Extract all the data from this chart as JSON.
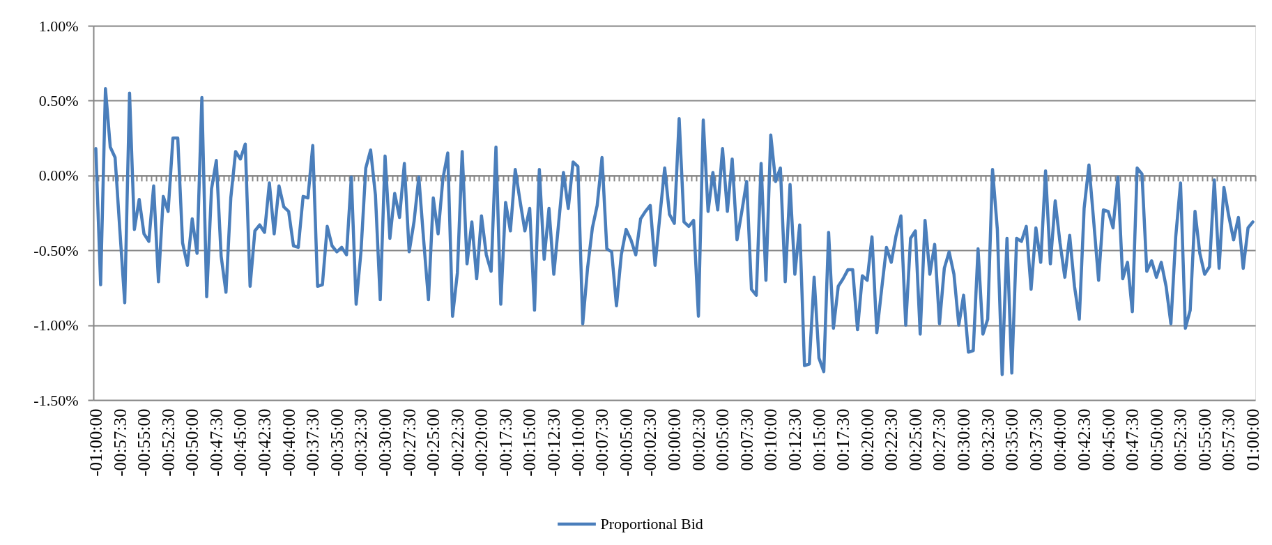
{
  "chart_data": {
    "type": "line",
    "categories": [
      "-01:00:00",
      null,
      null,
      null,
      null,
      "-00:57:30",
      null,
      null,
      null,
      null,
      "-00:55:00",
      null,
      null,
      null,
      null,
      "-00:52:30",
      null,
      null,
      null,
      null,
      "-00:50:00",
      null,
      null,
      null,
      null,
      "-00:47:30",
      null,
      null,
      null,
      null,
      "-00:45:00",
      null,
      null,
      null,
      null,
      "-00:42:30",
      null,
      null,
      null,
      null,
      "-00:40:00",
      null,
      null,
      null,
      null,
      "-00:37:30",
      null,
      null,
      null,
      null,
      "-00:35:00",
      null,
      null,
      null,
      null,
      "-00:32:30",
      null,
      null,
      null,
      null,
      "-00:30:00",
      null,
      null,
      null,
      null,
      "-00:27:30",
      null,
      null,
      null,
      null,
      "-00:25:00",
      null,
      null,
      null,
      null,
      "-00:22:30",
      null,
      null,
      null,
      null,
      "-00:20:00",
      null,
      null,
      null,
      null,
      "-00:17:30",
      null,
      null,
      null,
      null,
      "-00:15:00",
      null,
      null,
      null,
      null,
      "-00:12:30",
      null,
      null,
      null,
      null,
      "-00:10:00",
      null,
      null,
      null,
      null,
      "-00:07:30",
      null,
      null,
      null,
      null,
      "-00:05:00",
      null,
      null,
      null,
      null,
      "-00:02:30",
      null,
      null,
      null,
      null,
      "00:00:00",
      null,
      null,
      null,
      null,
      "00:02:30",
      null,
      null,
      null,
      null,
      "00:05:00",
      null,
      null,
      null,
      null,
      "00:07:30",
      null,
      null,
      null,
      null,
      "00:10:00",
      null,
      null,
      null,
      null,
      "00:12:30",
      null,
      null,
      null,
      null,
      "00:15:00",
      null,
      null,
      null,
      null,
      "00:17:30",
      null,
      null,
      null,
      null,
      "00:20:00",
      null,
      null,
      null,
      null,
      "00:22:30",
      null,
      null,
      null,
      null,
      "00:25:00",
      null,
      null,
      null,
      null,
      "00:27:30",
      null,
      null,
      null,
      null,
      "00:30:00",
      null,
      null,
      null,
      null,
      "00:32:30",
      null,
      null,
      null,
      null,
      "00:35:00",
      null,
      null,
      null,
      null,
      "00:37:30",
      null,
      null,
      null,
      null,
      "00:40:00",
      null,
      null,
      null,
      null,
      "00:42:30",
      null,
      null,
      null,
      null,
      "00:45:00",
      null,
      null,
      null,
      null,
      "00:47:30",
      null,
      null,
      null,
      null,
      "00:50:00",
      null,
      null,
      null,
      null,
      "00:52:30",
      null,
      null,
      null,
      null,
      "00:55:00",
      null,
      null,
      null,
      null,
      "00:57:30",
      null,
      null,
      null,
      null,
      "01:00:00"
    ],
    "series": [
      {
        "name": "Proportional Bid",
        "color": "#4a7ebb",
        "values": [
          0.18,
          -0.73,
          0.58,
          0.19,
          0.12,
          -0.37,
          -0.85,
          0.55,
          -0.36,
          -0.16,
          -0.39,
          -0.44,
          -0.07,
          -0.71,
          -0.14,
          -0.24,
          0.25,
          0.25,
          -0.45,
          -0.6,
          -0.29,
          -0.52,
          0.52,
          -0.81,
          -0.09,
          0.1,
          -0.54,
          -0.78,
          -0.15,
          0.16,
          0.11,
          0.21,
          -0.74,
          -0.37,
          -0.33,
          -0.38,
          -0.05,
          -0.39,
          -0.07,
          -0.21,
          -0.24,
          -0.47,
          -0.48,
          -0.14,
          -0.15,
          0.2,
          -0.74,
          -0.73,
          -0.34,
          -0.47,
          -0.51,
          -0.48,
          -0.53,
          -0.01,
          -0.86,
          -0.51,
          0.05,
          0.17,
          -0.13,
          -0.83,
          0.13,
          -0.42,
          -0.12,
          -0.28,
          0.08,
          -0.51,
          -0.31,
          -0.01,
          -0.43,
          -0.83,
          -0.15,
          -0.39,
          -0.02,
          0.15,
          -0.94,
          -0.65,
          0.16,
          -0.59,
          -0.31,
          -0.69,
          -0.27,
          -0.53,
          -0.64,
          0.19,
          -0.86,
          -0.18,
          -0.37,
          0.04,
          -0.17,
          -0.37,
          -0.22,
          -0.9,
          0.04,
          -0.56,
          -0.22,
          -0.66,
          -0.32,
          0.02,
          -0.22,
          0.09,
          0.06,
          -0.99,
          -0.62,
          -0.35,
          -0.2,
          0.12,
          -0.49,
          -0.51,
          -0.87,
          -0.53,
          -0.36,
          -0.43,
          -0.53,
          -0.29,
          -0.24,
          -0.2,
          -0.6,
          -0.27,
          0.05,
          -0.26,
          -0.32,
          0.38,
          -0.31,
          -0.34,
          -0.3,
          -0.94,
          0.37,
          -0.24,
          0.02,
          -0.23,
          0.18,
          -0.24,
          0.11,
          -0.43,
          -0.24,
          -0.04,
          -0.76,
          -0.8,
          0.08,
          -0.7,
          0.27,
          -0.04,
          0.05,
          -0.71,
          -0.06,
          -0.66,
          -0.33,
          -1.27,
          -1.26,
          -0.68,
          -1.22,
          -1.31,
          -0.38,
          -1.02,
          -0.74,
          -0.69,
          -0.63,
          -0.63,
          -1.03,
          -0.67,
          -0.7,
          -0.41,
          -1.05,
          -0.76,
          -0.48,
          -0.58,
          -0.4,
          -0.27,
          -1.0,
          -0.42,
          -0.37,
          -1.06,
          -0.3,
          -0.66,
          -0.46,
          -0.99,
          -0.62,
          -0.51,
          -0.66,
          -1.0,
          -0.8,
          -1.18,
          -1.17,
          -0.49,
          -1.06,
          -0.96,
          0.04,
          -0.36,
          -1.33,
          -0.42,
          -1.32,
          -0.42,
          -0.44,
          -0.34,
          -0.76,
          -0.35,
          -0.58,
          0.03,
          -0.59,
          -0.17,
          -0.45,
          -0.68,
          -0.4,
          -0.74,
          -0.96,
          -0.22,
          0.07,
          -0.31,
          -0.7,
          -0.23,
          -0.24,
          -0.35,
          -0.01,
          -0.69,
          -0.58,
          -0.91,
          0.05,
          0.01,
          -0.64,
          -0.57,
          -0.68,
          -0.58,
          -0.74,
          -0.99,
          -0.41,
          -0.05,
          -1.02,
          -0.9,
          -0.24,
          -0.52,
          -0.66,
          -0.61,
          -0.03,
          -0.62,
          -0.08,
          -0.27,
          -0.43,
          -0.28,
          -0.62,
          -0.35,
          -0.31
        ]
      }
    ],
    "ylim": [
      -1.5,
      1
    ],
    "yticks": [
      {
        "value": 1,
        "label": "1.00%"
      },
      {
        "value": 0.5,
        "label": "0.50%"
      },
      {
        "value": 0,
        "label": "0.00%"
      },
      {
        "value": -0.5,
        "label": "-0.50%"
      },
      {
        "value": -1,
        "label": "-1.00%"
      },
      {
        "value": -1.5,
        "label": "-1.50%"
      }
    ],
    "grid": "y",
    "legend": "bottom",
    "line_style": "solid"
  }
}
